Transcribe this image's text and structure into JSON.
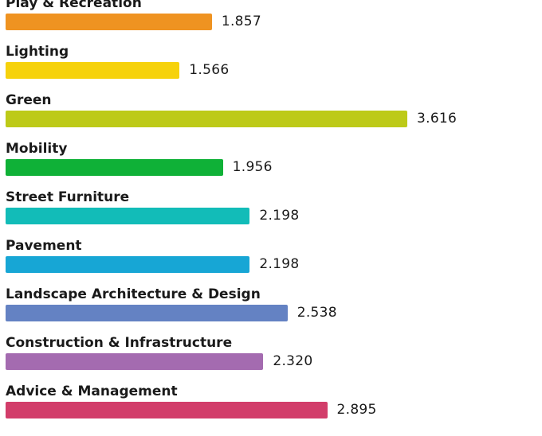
{
  "chart_data": {
    "type": "bar",
    "orientation": "horizontal",
    "grid": false,
    "categories": [
      "Play & Recreation",
      "Lighting",
      "Green",
      "Mobility",
      "Street Furniture",
      "Pavement",
      "Landscape Architecture & Design",
      "Construction & Infrastructure",
      "Advice & Management"
    ],
    "values": [
      1.857,
      1.566,
      3.616,
      1.956,
      2.198,
      2.198,
      2.538,
      2.32,
      2.895
    ],
    "value_labels": [
      "1.857",
      "1.566",
      "3.616",
      "1.956",
      "2.198",
      "2.198",
      "2.538",
      "2.320",
      "2.895"
    ],
    "colors": [
      "#ef9321",
      "#f6d20c",
      "#bdca18",
      "#0fb137",
      "#12bcb8",
      "#17a6d5",
      "#6482c3",
      "#a46bb0",
      "#d23d6a"
    ],
    "xlim": [
      0,
      3.616
    ]
  }
}
